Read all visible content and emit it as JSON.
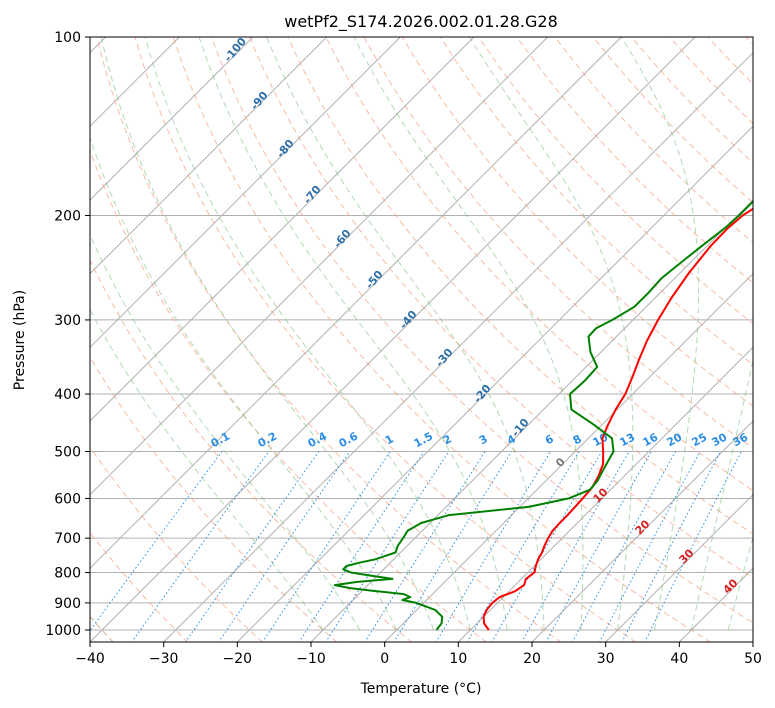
{
  "chart_data": {
    "type": "line",
    "title": "wetPf2_S174.2026.002.01.28.G28",
    "xlabel": "Temperature (°C)",
    "ylabel": "Pressure (hPa)",
    "xlim": [
      -40,
      50
    ],
    "ylim": [
      1050,
      100
    ],
    "y_scale": "log",
    "grid": true,
    "x_ticks": [
      -40,
      -30,
      -20,
      -10,
      0,
      10,
      20,
      30,
      40,
      50
    ],
    "y_ticks": [
      100,
      200,
      300,
      400,
      500,
      600,
      700,
      800,
      900,
      1000
    ],
    "series": [
      {
        "color": "#ff0000",
        "y": [
          1000,
          975,
          950,
          925,
          900,
          880,
          860,
          840,
          820,
          800,
          780,
          760,
          740,
          720,
          700,
          680,
          660,
          640,
          620,
          600,
          575,
          550,
          525,
          500,
          475,
          450,
          425,
          400,
          375,
          350,
          325,
          300,
          275,
          250,
          225,
          210,
          200,
          190,
          180,
          170,
          160,
          150,
          140,
          130,
          120,
          110,
          100
        ],
        "x": [
          12.5,
          11,
          10,
          9.5,
          9.3,
          9.5,
          10.8,
          11.2,
          10.6,
          10.9,
          10.2,
          9.6,
          9.2,
          8.6,
          8.1,
          7.7,
          7.6,
          7.6,
          7.5,
          7.4,
          7.2,
          6.5,
          5.5,
          3.8,
          1.9,
          0.8,
          -0.2,
          -1.0,
          -2.3,
          -3.8,
          -5.3,
          -6.6,
          -7.8,
          -8.8,
          -9.5,
          -9.6,
          -9.3,
          -8.3,
          -6.6,
          -5.0,
          -3.9,
          -2.6,
          -1.5,
          -0.3,
          0.8,
          2.2,
          3.8
        ]
      },
      {
        "color": "#008000",
        "y": [
          1000,
          975,
          950,
          925,
          900,
          890,
          880,
          870,
          860,
          850,
          840,
          830,
          820,
          810,
          800,
          790,
          780,
          770,
          760,
          740,
          720,
          700,
          680,
          660,
          640,
          620,
          600,
          580,
          560,
          540,
          520,
          500,
          475,
          450,
          425,
          400,
          380,
          360,
          340,
          320,
          310,
          300,
          285,
          270,
          255,
          240,
          225,
          210,
          200,
          190,
          175,
          165,
          150,
          140,
          130,
          120,
          110,
          100
        ],
        "x": [
          5.4,
          5.2,
          4.4,
          2.5,
          -1.0,
          -3.3,
          -2.6,
          -3.9,
          -8.0,
          -12.0,
          -14.5,
          -12.0,
          -7.5,
          -10.8,
          -14.0,
          -15.5,
          -15.5,
          -14.2,
          -12.5,
          -10.7,
          -11.3,
          -11.6,
          -12.0,
          -11.2,
          -8.5,
          1.2,
          5.5,
          7.2,
          7.0,
          6.4,
          5.8,
          5.2,
          3.2,
          -1.2,
          -6.2,
          -8.5,
          -8.3,
          -8.5,
          -11.4,
          -13.8,
          -13.9,
          -12.8,
          -11.6,
          -11.6,
          -11.8,
          -11.3,
          -10.7,
          -10.0,
          -9.8,
          -9.8,
          -9.6,
          -9.5,
          -9.3,
          -8.8,
          -7.7,
          -6.2,
          -3.6,
          0.6
        ]
      }
    ],
    "dry_adiabat_labels": [
      "-100",
      "-90",
      "-80",
      "-70",
      "-60",
      "-50",
      "-40",
      "-30",
      "-20",
      "-10"
    ],
    "moist_adiabat_labels": [
      "0",
      "10",
      "20",
      "30",
      "40"
    ],
    "mixing_ratio_labels": [
      "0.1",
      "0.2",
      "0.4",
      "0.6",
      "1",
      "1.5",
      "2",
      "3",
      "4",
      "6",
      "8",
      "10",
      "13",
      "16",
      "20",
      "25",
      "30",
      "36"
    ]
  }
}
